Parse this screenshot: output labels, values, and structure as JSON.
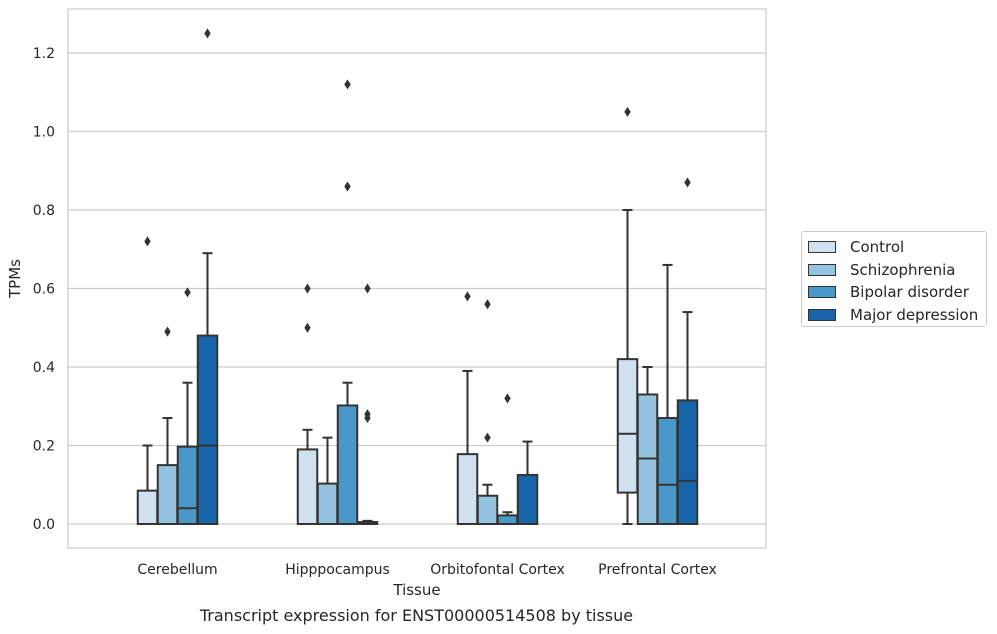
{
  "chart_data": {
    "type": "box",
    "ylabel": "TPMs",
    "xlabel": "Tissue",
    "caption": "Transcript expression for ENST00000514508 by tissue",
    "ylim": [
      -0.06,
      1.32
    ],
    "yticks": [
      "0.0",
      "0.2",
      "0.4",
      "0.6",
      "0.8",
      "1.0",
      "1.2"
    ],
    "grid": true,
    "legend_position": "right",
    "categories": [
      "Cerebellum",
      "Hipppocampus",
      "Orbitofontal Cortex",
      "Prefrontal Cortex"
    ],
    "series": [
      {
        "name": "Control",
        "color": "#d0e1f2",
        "boxes": [
          {
            "min": 0.0,
            "q1": 0.0,
            "median": 0.0,
            "q3": 0.085,
            "max": 0.2,
            "outliers": [
              0.72
            ]
          },
          {
            "min": 0.0,
            "q1": 0.0,
            "median": 0.0,
            "q3": 0.19,
            "max": 0.24,
            "outliers": [
              0.6,
              0.5
            ]
          },
          {
            "min": 0.0,
            "q1": 0.0,
            "median": 0.0,
            "q3": 0.178,
            "max": 0.39,
            "outliers": [
              0.58
            ]
          },
          {
            "min": 0.0,
            "q1": 0.08,
            "median": 0.23,
            "q3": 0.42,
            "max": 0.8,
            "outliers": [
              1.05
            ]
          }
        ]
      },
      {
        "name": "Schizophrenia",
        "color": "#94c4df",
        "boxes": [
          {
            "min": 0.0,
            "q1": 0.0,
            "median": 0.0,
            "q3": 0.15,
            "max": 0.27,
            "outliers": [
              0.49
            ]
          },
          {
            "min": 0.0,
            "q1": 0.0,
            "median": 0.0,
            "q3": 0.103,
            "max": 0.22,
            "outliers": []
          },
          {
            "min": 0.0,
            "q1": 0.0,
            "median": 0.0,
            "q3": 0.072,
            "max": 0.1,
            "outliers": [
              0.56,
              0.22
            ]
          },
          {
            "min": 0.0,
            "q1": 0.0,
            "median": 0.167,
            "q3": 0.33,
            "max": 0.4,
            "outliers": []
          }
        ]
      },
      {
        "name": "Bipolar disorder",
        "color": "#4a98c9",
        "boxes": [
          {
            "min": 0.0,
            "q1": 0.0,
            "median": 0.04,
            "q3": 0.197,
            "max": 0.36,
            "outliers": [
              0.59
            ]
          },
          {
            "min": 0.0,
            "q1": 0.0,
            "median": 0.0,
            "q3": 0.302,
            "max": 0.36,
            "outliers": [
              1.12,
              0.86
            ]
          },
          {
            "min": 0.0,
            "q1": 0.0,
            "median": 0.0,
            "q3": 0.022,
            "max": 0.03,
            "outliers": [
              0.32
            ]
          },
          {
            "min": 0.0,
            "q1": 0.0,
            "median": 0.1,
            "q3": 0.27,
            "max": 0.66,
            "outliers": []
          }
        ]
      },
      {
        "name": "Major depression",
        "color": "#1764ab",
        "boxes": [
          {
            "min": 0.0,
            "q1": 0.0,
            "median": 0.2,
            "q3": 0.48,
            "max": 0.69,
            "outliers": [
              1.25
            ]
          },
          {
            "min": 0.0,
            "q1": 0.0,
            "median": 0.0,
            "q3": 0.005,
            "max": 0.008,
            "outliers": [
              0.6,
              0.28,
              0.27
            ]
          },
          {
            "min": 0.0,
            "q1": 0.0,
            "median": 0.0,
            "q3": 0.125,
            "max": 0.21,
            "outliers": []
          },
          {
            "min": 0.0,
            "q1": 0.0,
            "median": 0.11,
            "q3": 0.315,
            "max": 0.54,
            "outliers": [
              0.87
            ]
          }
        ]
      }
    ]
  }
}
